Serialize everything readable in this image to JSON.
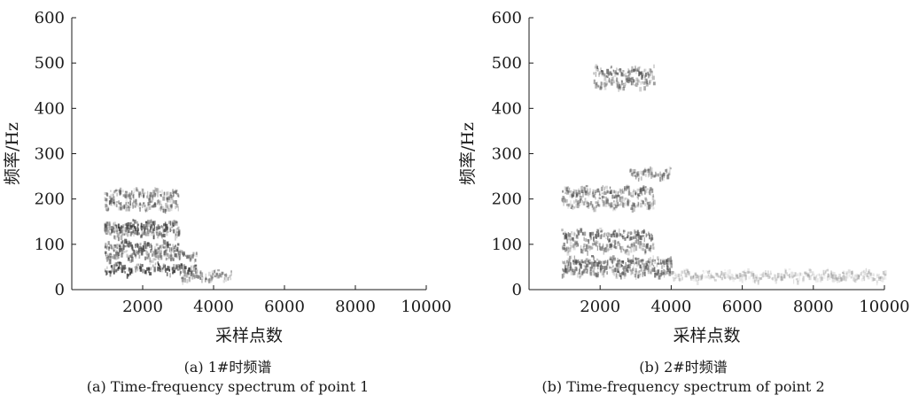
{
  "chart_data": [
    {
      "type": "heatmap",
      "title": "",
      "xlabel": "采样点数",
      "ylabel": "频率/Hz",
      "xlim": [
        0,
        10000
      ],
      "ylim": [
        0,
        600
      ],
      "xticks": [
        2000,
        4000,
        6000,
        8000,
        10000
      ],
      "yticks": [
        0,
        100,
        200,
        300,
        400,
        500,
        600
      ],
      "grid": false,
      "legend": "none",
      "caption_cn": "(a) 1#时频谱",
      "caption_en": "(a) Time-frequency spectrum of point 1",
      "ridges": [
        {
          "x": [
            900,
            3000
          ],
          "f": 210,
          "intensity": 0.45
        },
        {
          "x": [
            900,
            3000
          ],
          "f": 185,
          "intensity": 0.5
        },
        {
          "x": [
            900,
            3000
          ],
          "f": 140,
          "intensity": 0.65
        },
        {
          "x": [
            900,
            3000
          ],
          "f": 125,
          "intensity": 0.55
        },
        {
          "x": [
            900,
            3000
          ],
          "f": 95,
          "intensity": 0.6
        },
        {
          "x": [
            900,
            3500
          ],
          "f": 75,
          "intensity": 0.5
        },
        {
          "x": [
            900,
            3500
          ],
          "f": 45,
          "intensity": 0.7
        },
        {
          "x": [
            3000,
            4500
          ],
          "f": 30,
          "intensity": 0.45
        }
      ]
    },
    {
      "type": "heatmap",
      "title": "",
      "xlabel": "采样点数",
      "ylabel": "频率/Hz",
      "xlim": [
        0,
        10000
      ],
      "ylim": [
        0,
        600
      ],
      "xticks": [
        2000,
        4000,
        6000,
        8000,
        10000
      ],
      "yticks": [
        0,
        100,
        200,
        300,
        400,
        500,
        600
      ],
      "grid": false,
      "legend": "none",
      "caption_cn": "(b) 2#时频谱",
      "caption_en": "(b) Time-frequency spectrum of point 2",
      "ridges": [
        {
          "x": [
            1800,
            3500
          ],
          "f": 480,
          "intensity": 0.55
        },
        {
          "x": [
            1800,
            3500
          ],
          "f": 455,
          "intensity": 0.45
        },
        {
          "x": [
            2800,
            4000
          ],
          "f": 255,
          "intensity": 0.45
        },
        {
          "x": [
            900,
            3500
          ],
          "f": 215,
          "intensity": 0.5
        },
        {
          "x": [
            900,
            3500
          ],
          "f": 190,
          "intensity": 0.45
        },
        {
          "x": [
            900,
            3500
          ],
          "f": 120,
          "intensity": 0.55
        },
        {
          "x": [
            900,
            3500
          ],
          "f": 95,
          "intensity": 0.45
        },
        {
          "x": [
            900,
            4000
          ],
          "f": 60,
          "intensity": 0.55
        },
        {
          "x": [
            900,
            4000
          ],
          "f": 40,
          "intensity": 0.5
        },
        {
          "x": [
            4000,
            10000
          ],
          "f": 30,
          "intensity": 0.25
        }
      ]
    }
  ]
}
